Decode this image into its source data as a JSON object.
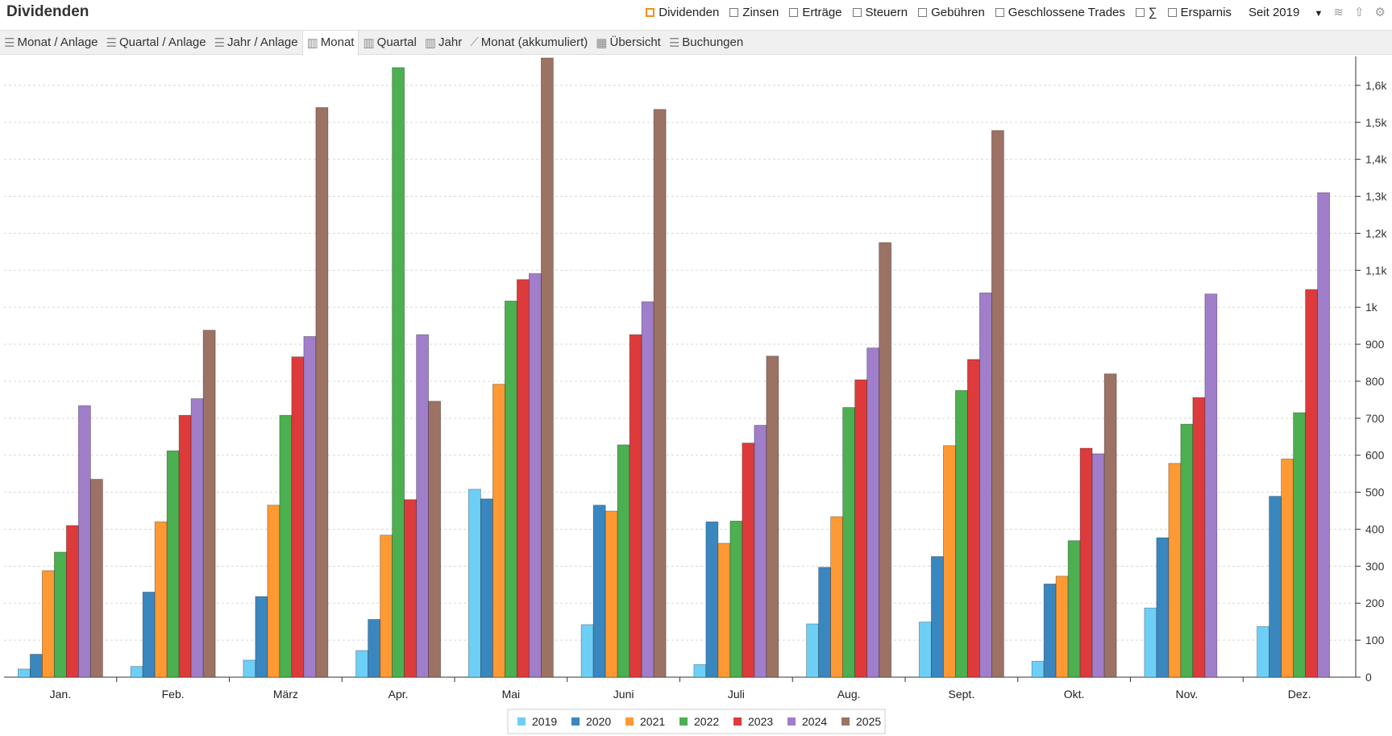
{
  "header": {
    "title": "Dividenden",
    "filters": [
      {
        "label": "Dividenden",
        "checked": false,
        "accent": "#f39018"
      },
      {
        "label": "Zinsen"
      },
      {
        "label": "Erträge"
      },
      {
        "label": "Steuern"
      },
      {
        "label": "Gebühren"
      },
      {
        "label": "Geschlossene Trades"
      },
      {
        "label": "∑"
      },
      {
        "label": "Ersparnis"
      }
    ],
    "period": "Seit 2019",
    "icons": [
      "dropdown-arrow-icon",
      "layers-icon",
      "export-icon",
      "gear-icon"
    ]
  },
  "tabs": [
    {
      "label": "Monat / Anlage",
      "icon": "list"
    },
    {
      "label": "Quartal / Anlage",
      "icon": "list"
    },
    {
      "label": "Jahr / Anlage",
      "icon": "list"
    },
    {
      "label": "Monat",
      "icon": "bar",
      "active": true
    },
    {
      "label": "Quartal",
      "icon": "bar"
    },
    {
      "label": "Jahr",
      "icon": "bar"
    },
    {
      "label": "Monat (akkumuliert)",
      "icon": "line"
    },
    {
      "label": "Übersicht",
      "icon": "calendar"
    },
    {
      "label": "Buchungen",
      "icon": "list"
    }
  ],
  "chart_data": {
    "type": "bar",
    "title": "",
    "xlabel": "",
    "ylabel": "",
    "ylim": [
      0,
      1700
    ],
    "grid": true,
    "legend": "bottom",
    "y_axis_side": "right",
    "yticks": [
      {
        "v": 0,
        "l": "0"
      },
      {
        "v": 100,
        "l": "100"
      },
      {
        "v": 200,
        "l": "200"
      },
      {
        "v": 300,
        "l": "300"
      },
      {
        "v": 400,
        "l": "400"
      },
      {
        "v": 500,
        "l": "500"
      },
      {
        "v": 600,
        "l": "600"
      },
      {
        "v": 700,
        "l": "700"
      },
      {
        "v": 800,
        "l": "800"
      },
      {
        "v": 900,
        "l": "900"
      },
      {
        "v": 1000,
        "l": "1k"
      },
      {
        "v": 1100,
        "l": "1,1k"
      },
      {
        "v": 1200,
        "l": "1,2k"
      },
      {
        "v": 1300,
        "l": "1,3k"
      },
      {
        "v": 1400,
        "l": "1,4k"
      },
      {
        "v": 1500,
        "l": "1,5k"
      },
      {
        "v": 1600,
        "l": "1,6k"
      }
    ],
    "categories": [
      "Jan.",
      "Feb.",
      "März",
      "Apr.",
      "Mai",
      "Juni",
      "Juli",
      "Aug.",
      "Sept.",
      "Okt.",
      "Nov.",
      "Dez."
    ],
    "series": [
      {
        "name": "2019",
        "color": "#6dcff6",
        "values": [
          22,
          29,
          46,
          72,
          508,
          142,
          34,
          144,
          149,
          43,
          187,
          137
        ]
      },
      {
        "name": "2020",
        "color": "#3a87c0",
        "values": [
          62,
          230,
          218,
          156,
          482,
          465,
          420,
          297,
          326,
          252,
          377,
          489
        ]
      },
      {
        "name": "2021",
        "color": "#ff9933",
        "values": [
          288,
          420,
          465,
          384,
          792,
          449,
          362,
          434,
          626,
          273,
          578,
          590
        ]
      },
      {
        "name": "2022",
        "color": "#4caf50",
        "values": [
          338,
          612,
          708,
          1648,
          1017,
          628,
          422,
          729,
          775,
          369,
          684,
          715
        ]
      },
      {
        "name": "2023",
        "color": "#dd3b3b",
        "values": [
          410,
          708,
          866,
          480,
          1075,
          926,
          633,
          804,
          859,
          619,
          756,
          1048
        ]
      },
      {
        "name": "2024",
        "color": "#a07ec9",
        "values": [
          734,
          753,
          921,
          926,
          1091,
          1015,
          681,
          890,
          1039,
          604,
          1036,
          1310
        ]
      },
      {
        "name": "2025",
        "color": "#9c7265",
        "values": [
          535,
          938,
          1540,
          746,
          1674,
          1535,
          868,
          1175,
          1478,
          820,
          null,
          null
        ]
      }
    ]
  }
}
